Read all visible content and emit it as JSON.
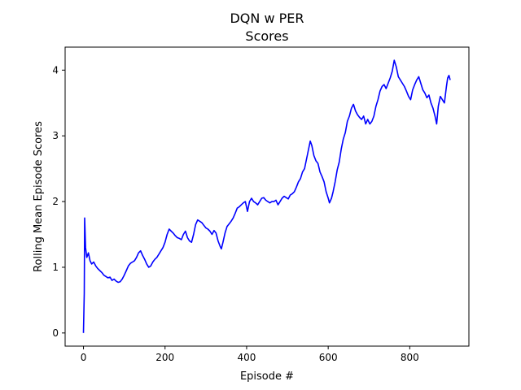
{
  "chart_data": {
    "type": "line",
    "title": "DQN w PER",
    "subtitle": "Scores",
    "xlabel": "Episode #",
    "ylabel": "Rolling Mean Episode Scores",
    "xlim": [
      -45,
      945
    ],
    "ylim": [
      -0.2,
      4.35
    ],
    "xticks": [
      0,
      200,
      400,
      600,
      800
    ],
    "yticks": [
      0,
      1,
      2,
      3,
      4
    ],
    "grid": false,
    "legend": "none",
    "series": [
      {
        "color": "#0000ff",
        "points": [
          [
            0,
            0.0
          ],
          [
            2,
            0.6
          ],
          [
            3,
            1.75
          ],
          [
            5,
            1.3
          ],
          [
            8,
            1.15
          ],
          [
            12,
            1.22
          ],
          [
            16,
            1.1
          ],
          [
            20,
            1.05
          ],
          [
            25,
            1.08
          ],
          [
            30,
            1.02
          ],
          [
            35,
            0.98
          ],
          [
            40,
            0.95
          ],
          [
            45,
            0.92
          ],
          [
            50,
            0.88
          ],
          [
            55,
            0.86
          ],
          [
            60,
            0.84
          ],
          [
            65,
            0.85
          ],
          [
            70,
            0.8
          ],
          [
            75,
            0.82
          ],
          [
            80,
            0.79
          ],
          [
            85,
            0.77
          ],
          [
            90,
            0.78
          ],
          [
            95,
            0.82
          ],
          [
            100,
            0.88
          ],
          [
            105,
            0.95
          ],
          [
            110,
            1.02
          ],
          [
            115,
            1.06
          ],
          [
            120,
            1.08
          ],
          [
            125,
            1.1
          ],
          [
            130,
            1.15
          ],
          [
            135,
            1.22
          ],
          [
            140,
            1.25
          ],
          [
            145,
            1.18
          ],
          [
            150,
            1.12
          ],
          [
            155,
            1.05
          ],
          [
            160,
            1.0
          ],
          [
            165,
            1.02
          ],
          [
            170,
            1.08
          ],
          [
            175,
            1.12
          ],
          [
            180,
            1.15
          ],
          [
            185,
            1.2
          ],
          [
            190,
            1.25
          ],
          [
            195,
            1.3
          ],
          [
            200,
            1.38
          ],
          [
            205,
            1.5
          ],
          [
            210,
            1.58
          ],
          [
            215,
            1.55
          ],
          [
            220,
            1.52
          ],
          [
            225,
            1.48
          ],
          [
            230,
            1.45
          ],
          [
            235,
            1.44
          ],
          [
            240,
            1.42
          ],
          [
            245,
            1.5
          ],
          [
            250,
            1.55
          ],
          [
            255,
            1.45
          ],
          [
            260,
            1.4
          ],
          [
            265,
            1.38
          ],
          [
            270,
            1.5
          ],
          [
            275,
            1.65
          ],
          [
            280,
            1.72
          ],
          [
            285,
            1.7
          ],
          [
            290,
            1.68
          ],
          [
            295,
            1.64
          ],
          [
            300,
            1.6
          ],
          [
            305,
            1.58
          ],
          [
            310,
            1.55
          ],
          [
            315,
            1.5
          ],
          [
            320,
            1.56
          ],
          [
            325,
            1.52
          ],
          [
            330,
            1.4
          ],
          [
            335,
            1.32
          ],
          [
            338,
            1.28
          ],
          [
            342,
            1.38
          ],
          [
            347,
            1.52
          ],
          [
            352,
            1.62
          ],
          [
            357,
            1.66
          ],
          [
            362,
            1.7
          ],
          [
            367,
            1.75
          ],
          [
            372,
            1.82
          ],
          [
            377,
            1.9
          ],
          [
            382,
            1.92
          ],
          [
            387,
            1.95
          ],
          [
            392,
            1.98
          ],
          [
            397,
            2.0
          ],
          [
            402,
            1.85
          ],
          [
            407,
            2.0
          ],
          [
            412,
            2.05
          ],
          [
            417,
            2.0
          ],
          [
            422,
            1.98
          ],
          [
            427,
            1.95
          ],
          [
            432,
            2.0
          ],
          [
            437,
            2.05
          ],
          [
            442,
            2.06
          ],
          [
            447,
            2.02
          ],
          [
            452,
            2.0
          ],
          [
            457,
            1.98
          ],
          [
            462,
            2.0
          ],
          [
            467,
            2.0
          ],
          [
            472,
            2.02
          ],
          [
            477,
            1.95
          ],
          [
            482,
            2.0
          ],
          [
            487,
            2.05
          ],
          [
            492,
            2.08
          ],
          [
            497,
            2.06
          ],
          [
            502,
            2.04
          ],
          [
            507,
            2.1
          ],
          [
            512,
            2.12
          ],
          [
            517,
            2.15
          ],
          [
            522,
            2.22
          ],
          [
            527,
            2.3
          ],
          [
            532,
            2.35
          ],
          [
            537,
            2.45
          ],
          [
            542,
            2.5
          ],
          [
            547,
            2.65
          ],
          [
            552,
            2.8
          ],
          [
            556,
            2.92
          ],
          [
            560,
            2.85
          ],
          [
            565,
            2.7
          ],
          [
            570,
            2.62
          ],
          [
            575,
            2.58
          ],
          [
            580,
            2.45
          ],
          [
            585,
            2.38
          ],
          [
            590,
            2.3
          ],
          [
            595,
            2.15
          ],
          [
            600,
            2.05
          ],
          [
            603,
            1.98
          ],
          [
            608,
            2.05
          ],
          [
            612,
            2.15
          ],
          [
            617,
            2.3
          ],
          [
            622,
            2.48
          ],
          [
            627,
            2.6
          ],
          [
            632,
            2.8
          ],
          [
            637,
            2.95
          ],
          [
            642,
            3.05
          ],
          [
            647,
            3.22
          ],
          [
            652,
            3.3
          ],
          [
            657,
            3.42
          ],
          [
            662,
            3.48
          ],
          [
            667,
            3.38
          ],
          [
            672,
            3.32
          ],
          [
            677,
            3.28
          ],
          [
            682,
            3.25
          ],
          [
            687,
            3.3
          ],
          [
            692,
            3.18
          ],
          [
            697,
            3.25
          ],
          [
            702,
            3.18
          ],
          [
            707,
            3.22
          ],
          [
            712,
            3.3
          ],
          [
            717,
            3.45
          ],
          [
            722,
            3.55
          ],
          [
            727,
            3.68
          ],
          [
            732,
            3.75
          ],
          [
            737,
            3.78
          ],
          [
            742,
            3.72
          ],
          [
            747,
            3.8
          ],
          [
            752,
            3.88
          ],
          [
            757,
            3.98
          ],
          [
            762,
            4.15
          ],
          [
            767,
            4.05
          ],
          [
            772,
            3.9
          ],
          [
            777,
            3.85
          ],
          [
            782,
            3.8
          ],
          [
            787,
            3.75
          ],
          [
            792,
            3.68
          ],
          [
            797,
            3.6
          ],
          [
            802,
            3.55
          ],
          [
            807,
            3.7
          ],
          [
            812,
            3.78
          ],
          [
            817,
            3.85
          ],
          [
            822,
            3.9
          ],
          [
            827,
            3.8
          ],
          [
            832,
            3.7
          ],
          [
            837,
            3.65
          ],
          [
            842,
            3.58
          ],
          [
            847,
            3.62
          ],
          [
            852,
            3.5
          ],
          [
            857,
            3.42
          ],
          [
            862,
            3.3
          ],
          [
            866,
            3.18
          ],
          [
            870,
            3.45
          ],
          [
            875,
            3.6
          ],
          [
            880,
            3.55
          ],
          [
            885,
            3.5
          ],
          [
            890,
            3.75
          ],
          [
            893,
            3.88
          ],
          [
            896,
            3.92
          ],
          [
            899,
            3.85
          ]
        ]
      }
    ]
  }
}
